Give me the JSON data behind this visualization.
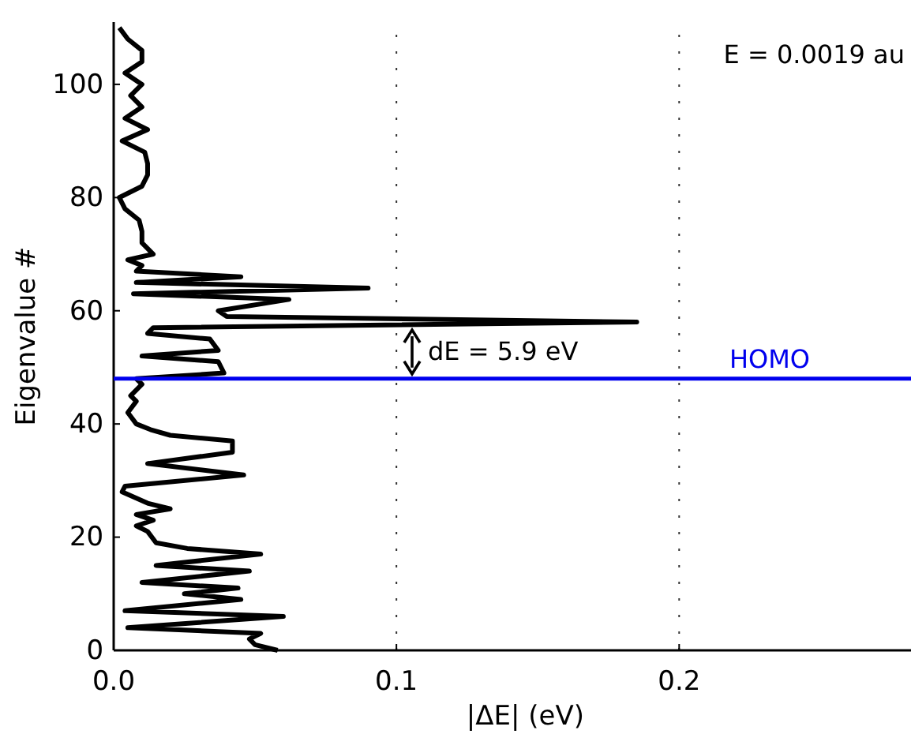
{
  "chart_data": {
    "type": "line",
    "xlabel": "|ΔE| (eV)",
    "ylabel": "Eigenvalue #",
    "xlim": [
      0,
      0.282
    ],
    "ylim": [
      0,
      111
    ],
    "xticks": [
      {
        "value": 0,
        "label": "0.0"
      },
      0.1,
      0.2
    ],
    "yticks": [
      0,
      20,
      40,
      60,
      80,
      100
    ],
    "grid": "x",
    "series": [
      {
        "color": "#000000",
        "x": [
          0.058,
          0.05,
          0.048,
          0.052,
          0.005,
          0.06,
          0.004,
          0.045,
          0.025,
          0.044,
          0.01,
          0.048,
          0.015,
          0.052,
          0.026,
          0.015,
          0.012,
          0.008,
          0.014,
          0.008,
          0.02,
          0.012,
          0.003,
          0.004,
          0.046,
          0.012,
          0.042,
          0.042,
          0.02,
          0.013,
          0.008,
          0.005,
          0.008,
          0.006,
          0.01,
          0.008,
          0.039,
          0.037,
          0.01,
          0.037,
          0.034,
          0.012,
          0.014,
          0.185,
          0.04,
          0.037,
          0.062,
          0.007,
          0.09,
          0.008,
          0.045,
          0.008,
          0.01,
          0.005,
          0.014,
          0.01,
          0.01,
          0.009,
          0.004,
          0.002,
          0.01,
          0.012,
          0.012,
          0.011,
          0.003,
          0.012,
          0.004,
          0.01,
          0.006,
          0.01,
          0.004,
          0.01,
          0.01,
          0.005,
          0.002
        ],
        "values": [
          0,
          1,
          2,
          3,
          4,
          6,
          7,
          9,
          10,
          11,
          12,
          14,
          15,
          17,
          18,
          19,
          21,
          22,
          23,
          24,
          25,
          26,
          28,
          29,
          31,
          33,
          35,
          37,
          38,
          39,
          40,
          42,
          44,
          45,
          47,
          48,
          49,
          51,
          52,
          53,
          55,
          56,
          57,
          58,
          59,
          60,
          62,
          63,
          64,
          65,
          66,
          67,
          68,
          69,
          70,
          72,
          74,
          76,
          78,
          80,
          82,
          84,
          86,
          88,
          90,
          92,
          94,
          96,
          98,
          100,
          102,
          104,
          106,
          108,
          110
        ]
      }
    ],
    "ref_lines": [
      {
        "axis": "y",
        "value": 48,
        "label": "HOMO",
        "color": "#0000ee"
      }
    ],
    "annotations": [
      "dE = 5.9 eV",
      "E = 0.0019 au"
    ]
  }
}
